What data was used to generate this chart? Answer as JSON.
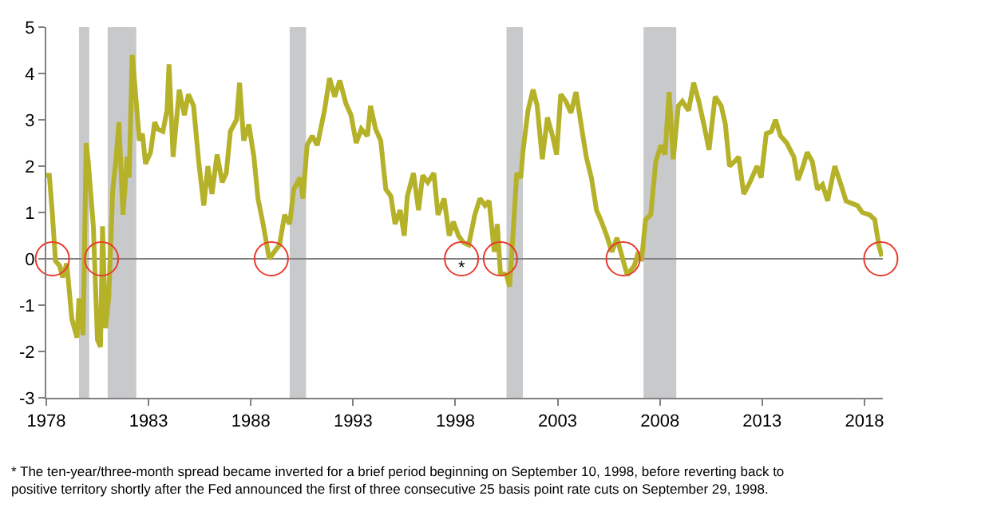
{
  "chart_data": {
    "type": "line",
    "xlim": [
      1978,
      2018.9
    ],
    "xticks": [
      1978,
      1983,
      1988,
      1993,
      1998,
      2003,
      2008,
      2013,
      2018
    ],
    "ylim": [
      -3,
      5
    ],
    "yticks": [
      -3,
      -2,
      -1,
      0,
      1,
      2,
      3,
      4,
      5
    ],
    "grid": false,
    "series": [
      {
        "color": "#b5b22a",
        "marker": "none",
        "line_style": "solid",
        "x": [
          1978.0,
          1978.15,
          1978.3,
          1978.45,
          1978.65,
          1978.8,
          1979.0,
          1979.25,
          1979.5,
          1979.6,
          1979.8,
          1979.95,
          1980.05,
          1980.3,
          1980.5,
          1980.65,
          1980.75,
          1980.9,
          1981.05,
          1981.25,
          1981.4,
          1981.55,
          1981.75,
          1981.95,
          1982.05,
          1982.2,
          1982.3,
          1982.55,
          1982.7,
          1982.85,
          1983.1,
          1983.3,
          1983.45,
          1983.7,
          1983.9,
          1984.0,
          1984.2,
          1984.5,
          1984.75,
          1984.95,
          1985.2,
          1985.45,
          1985.7,
          1985.9,
          1986.1,
          1986.35,
          1986.6,
          1986.8,
          1987.0,
          1987.3,
          1987.45,
          1987.65,
          1987.9,
          1988.15,
          1988.35,
          1988.6,
          1988.9,
          1989.15,
          1989.4,
          1989.65,
          1989.9,
          1990.1,
          1990.4,
          1990.55,
          1990.75,
          1991.0,
          1991.25,
          1991.6,
          1991.85,
          1992.1,
          1992.35,
          1992.65,
          1992.9,
          1993.15,
          1993.4,
          1993.7,
          1993.85,
          1994.1,
          1994.35,
          1994.6,
          1994.85,
          1995.05,
          1995.3,
          1995.5,
          1995.65,
          1995.95,
          1996.2,
          1996.4,
          1996.65,
          1996.95,
          1997.15,
          1997.45,
          1997.7,
          1997.9,
          1998.15,
          1998.4,
          1998.65,
          1998.95,
          1999.2,
          1999.45,
          1999.65,
          1999.9,
          2000.05,
          2000.2,
          2000.5,
          2000.65,
          2000.8,
          2001.0,
          2001.2,
          2001.3,
          2001.55,
          2001.8,
          2002.0,
          2002.25,
          2002.5,
          2002.75,
          2002.95,
          2003.15,
          2003.4,
          2003.65,
          2003.9,
          2004.2,
          2004.4,
          2004.65,
          2004.9,
          2005.1,
          2005.4,
          2005.65,
          2005.9,
          2006.15,
          2006.4,
          2006.75,
          2006.95,
          2007.1,
          2007.3,
          2007.55,
          2007.8,
          2008.05,
          2008.25,
          2008.45,
          2008.65,
          2008.9,
          2009.1,
          2009.4,
          2009.65,
          2009.9,
          2010.15,
          2010.4,
          2010.7,
          2011.0,
          2011.2,
          2011.4,
          2011.65,
          2011.85,
          2012.1,
          2012.4,
          2012.75,
          2012.95,
          2013.2,
          2013.45,
          2013.65,
          2013.9,
          2014.2,
          2014.55,
          2014.75,
          2015.0,
          2015.2,
          2015.45,
          2015.7,
          2015.95,
          2016.2,
          2016.55,
          2016.85,
          2017.1,
          2017.35,
          2017.65,
          2017.9,
          2018.25,
          2018.5,
          2018.7,
          2018.85
        ],
        "values": [
          1.8,
          1.8,
          0.95,
          -0.05,
          -0.15,
          -0.4,
          -0.1,
          -1.3,
          -1.7,
          -0.85,
          -1.65,
          2.5,
          2.1,
          0.7,
          -1.75,
          -1.9,
          0.7,
          -1.5,
          -0.85,
          1.5,
          2.1,
          2.95,
          0.95,
          2.2,
          1.75,
          4.4,
          3.9,
          2.55,
          2.7,
          2.05,
          2.3,
          2.95,
          2.8,
          2.75,
          3.2,
          4.2,
          2.2,
          3.65,
          3.1,
          3.55,
          3.3,
          2.1,
          1.15,
          2.0,
          1.4,
          2.25,
          1.65,
          1.85,
          2.75,
          3.0,
          3.8,
          2.55,
          2.9,
          2.2,
          1.3,
          0.75,
          0.0,
          0.15,
          0.3,
          0.95,
          0.75,
          1.5,
          1.75,
          1.3,
          2.45,
          2.65,
          2.45,
          3.2,
          3.9,
          3.5,
          3.85,
          3.35,
          3.1,
          2.5,
          2.8,
          2.65,
          3.3,
          2.8,
          2.55,
          1.5,
          1.35,
          0.75,
          1.05,
          0.5,
          1.35,
          1.85,
          1.05,
          1.8,
          1.65,
          1.85,
          0.95,
          1.3,
          0.5,
          0.8,
          0.5,
          0.35,
          0.3,
          0.95,
          1.3,
          1.15,
          1.25,
          0.15,
          0.75,
          -0.3,
          -0.35,
          -0.6,
          0.4,
          1.85,
          1.75,
          2.3,
          3.2,
          3.65,
          3.3,
          2.15,
          3.05,
          2.65,
          2.25,
          3.55,
          3.4,
          3.15,
          3.6,
          2.75,
          2.2,
          1.75,
          1.05,
          0.85,
          0.5,
          0.15,
          0.45,
          0.05,
          -0.35,
          -0.15,
          0.15,
          -0.05,
          0.85,
          0.95,
          2.1,
          2.45,
          2.25,
          3.6,
          2.15,
          3.3,
          3.4,
          3.2,
          3.8,
          3.4,
          2.9,
          2.35,
          3.5,
          3.3,
          2.9,
          2.0,
          2.1,
          2.2,
          1.4,
          1.65,
          2.0,
          1.75,
          2.7,
          2.75,
          3.0,
          2.65,
          2.5,
          2.2,
          1.7,
          2.0,
          2.3,
          2.1,
          1.5,
          1.6,
          1.25,
          2.0,
          1.6,
          1.25,
          1.2,
          1.15,
          1.0,
          0.95,
          0.85,
          0.3,
          0.05
        ]
      },
      {
        "type": "scatter",
        "color": "#e8392c",
        "marker": "circle",
        "x": [
          1978.3,
          1980.7,
          1989.0,
          1998.3,
          2000.2,
          2006.2,
          2018.8
        ],
        "values": [
          0,
          0,
          0,
          0,
          0,
          0,
          0
        ]
      }
    ],
    "ref_lines": [
      {
        "axis": "y",
        "value": 0,
        "color": "#808080"
      }
    ],
    "bands": [
      {
        "axis": "x",
        "from": 1979.6,
        "to": 1980.1,
        "color": "#c8c9cb"
      },
      {
        "axis": "x",
        "from": 1981.0,
        "to": 1982.4,
        "color": "#c8c9cb"
      },
      {
        "axis": "x",
        "from": 1989.9,
        "to": 1990.7,
        "color": "#c8c9cb"
      },
      {
        "axis": "x",
        "from": 2000.5,
        "to": 2001.3,
        "color": "#c8c9cb"
      },
      {
        "axis": "x",
        "from": 2007.2,
        "to": 2008.8,
        "color": "#c8c9cb"
      }
    ],
    "annotations": [
      {
        "text": "*",
        "x": 1998.3,
        "y": -0.2
      },
      "* The ten-year/three-month spread became inverted for a brief period beginning on September 10, 1998, before reverting back to positive territory shortly after the Fed announced the first of three consecutive 25 basis point rate cuts on September 29, 1998."
    ]
  }
}
